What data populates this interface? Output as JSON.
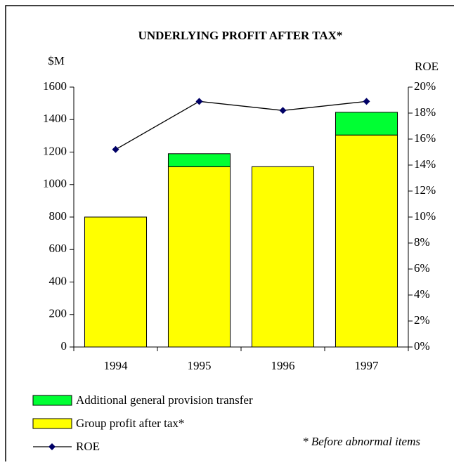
{
  "chart_data": {
    "type": "bar",
    "title": "UNDERLYING PROFIT AFTER TAX*",
    "y_label": "$M",
    "y2_label": "ROE",
    "annotation": "* Before abnormal items",
    "stacked": true,
    "categories": [
      "1994",
      "1995",
      "1996",
      "1997"
    ],
    "series": [
      {
        "name": "Additional general provision transfer",
        "color": "#00ff33",
        "type": "bar",
        "values": [
          null,
          80,
          null,
          140
        ]
      },
      {
        "name": "Group profit after tax*",
        "color": "#ffff00",
        "type": "bar",
        "values": [
          800,
          1110,
          1110,
          1305
        ]
      },
      {
        "name": "ROE",
        "color": "#000066",
        "type": "line",
        "axis": "y2",
        "values": [
          15.2,
          18.9,
          18.2,
          18.9
        ]
      }
    ],
    "ylim": [
      0,
      1600
    ],
    "yticks": [
      0,
      200,
      400,
      600,
      800,
      1000,
      1200,
      1400,
      1600
    ],
    "y2lim": [
      0,
      20
    ],
    "y2ticks": [
      {
        "value": 0,
        "label": "0%"
      },
      {
        "value": 2,
        "label": "2%"
      },
      {
        "value": 4,
        "label": "4%"
      },
      {
        "value": 6,
        "label": "6%"
      },
      {
        "value": 8,
        "label": "8%"
      },
      {
        "value": 10,
        "label": "10%"
      },
      {
        "value": 12,
        "label": "12%"
      },
      {
        "value": 14,
        "label": "14%"
      },
      {
        "value": 16,
        "label": "16%"
      },
      {
        "value": 18,
        "label": "18%"
      },
      {
        "value": 20,
        "label": "20%"
      }
    ],
    "legend": "bottom-left"
  }
}
